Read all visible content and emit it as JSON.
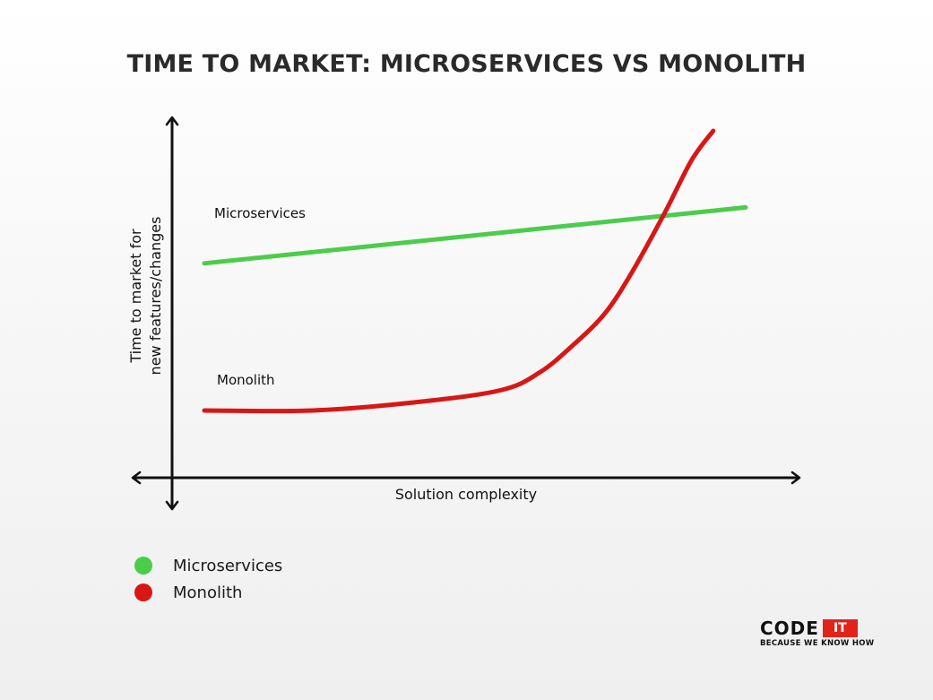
{
  "title": "TIME TO MARKET: MICROSERVICES VS MONOLITH",
  "chart_data": {
    "type": "line",
    "title": "TIME TO MARKET: MICROSERVICES VS MONOLITH",
    "xlabel": "Solution complexity",
    "ylabel": "Time to market for new features/changes",
    "ylabel_lines": [
      "Time to market for",
      "new features/changes"
    ],
    "x_ticks": false,
    "y_ticks": false,
    "grid": false,
    "legend_position": "bottom-left",
    "series": [
      {
        "name": "Microservices",
        "color": "#4ccc4c",
        "annotation": "Microservices",
        "x": [
          0,
          1
        ],
        "y": [
          0.55,
          0.74
        ]
      },
      {
        "name": "Monolith",
        "color": "#d91616",
        "annotation": "Monolith",
        "x": [
          0,
          0.2,
          0.4,
          0.55,
          0.62,
          0.68,
          0.74,
          0.79,
          0.85,
          0.9,
          0.94
        ],
        "y": [
          0.05,
          0.05,
          0.08,
          0.12,
          0.18,
          0.27,
          0.38,
          0.52,
          0.72,
          0.9,
          1.0
        ]
      }
    ],
    "legend": [
      {
        "name": "Microservices",
        "color": "#4ccc4c"
      },
      {
        "name": "Monolith",
        "color": "#d91616"
      }
    ]
  },
  "logo": {
    "main": "CODE",
    "accent": "IT",
    "tagline": "BECAUSE WE KNOW HOW",
    "accent_color": "#e2231a"
  }
}
